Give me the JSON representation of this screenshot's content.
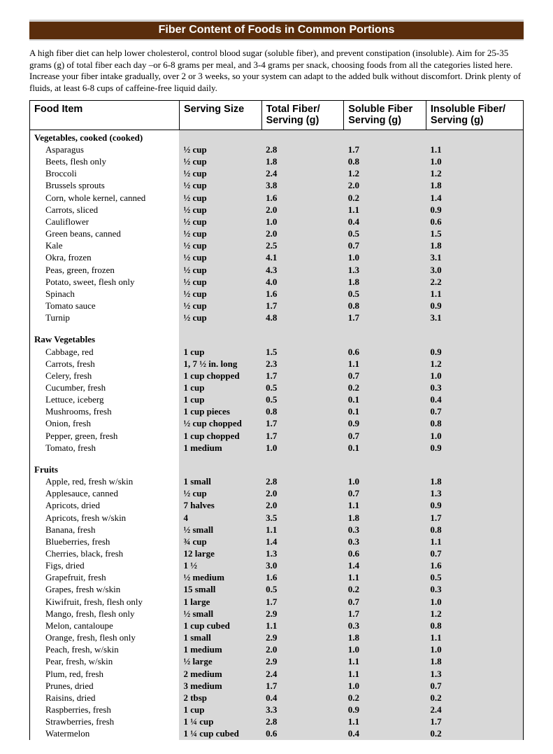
{
  "title": "Fiber Content of Foods in Common Portions",
  "intro": "A high fiber diet can help lower cholesterol, control blood sugar (soluble fiber), and prevent constipation (insoluble). Aim for 25-35 grams (g) of total fiber each day –or 6-8 grams per meal, and 3-4 grams per snack, choosing foods from all the categories listed here. Increase your fiber intake gradually, over 2 or 3 weeks, so your system can adapt to the added bulk without discomfort. Drink plenty of fluids, at least 6-8 cups of caffeine-free liquid daily.",
  "columns": [
    "Food Item",
    "Serving Size",
    "Total Fiber/ Serving (g)",
    "Soluble Fiber Serving (g)",
    "Insoluble Fiber/ Serving (g)"
  ],
  "sections": [
    {
      "heading": "Vegetables, cooked (cooked)",
      "rows": [
        [
          "Asparagus",
          "½ cup",
          "2.8",
          "1.7",
          "1.1"
        ],
        [
          "Beets, flesh only",
          "½ cup",
          "1.8",
          "0.8",
          "1.0"
        ],
        [
          "Broccoli",
          "½ cup",
          "2.4",
          "1.2",
          "1.2"
        ],
        [
          "Brussels sprouts",
          "½ cup",
          "3.8",
          "2.0",
          "1.8"
        ],
        [
          "Corn, whole kernel, canned",
          "½ cup",
          "1.6",
          "0.2",
          "1.4"
        ],
        [
          "Carrots, sliced",
          "½ cup",
          "2.0",
          "1.1",
          "0.9"
        ],
        [
          "Cauliflower",
          "½ cup",
          "1.0",
          "0.4",
          "0.6"
        ],
        [
          "Green beans, canned",
          "½ cup",
          "2.0",
          "0.5",
          "1.5"
        ],
        [
          "Kale",
          "½ cup",
          "2.5",
          "0.7",
          "1.8"
        ],
        [
          "Okra, frozen",
          "½ cup",
          "4.1",
          "1.0",
          "3.1"
        ],
        [
          "Peas, green, frozen",
          "½ cup",
          "4.3",
          "1.3",
          "3.0"
        ],
        [
          "Potato, sweet, flesh only",
          "½ cup",
          "4.0",
          "1.8",
          "2.2"
        ],
        [
          "Spinach",
          "½ cup",
          "1.6",
          "0.5",
          "1.1"
        ],
        [
          "Tomato sauce",
          "½ cup",
          "1.7",
          "0.8",
          "0.9"
        ],
        [
          "Turnip",
          "½ cup",
          "4.8",
          "1.7",
          "3.1"
        ]
      ]
    },
    {
      "heading": "Raw Vegetables",
      "rows": [
        [
          "Cabbage, red",
          "1 cup",
          "1.5",
          "0.6",
          "0.9"
        ],
        [
          "Carrots, fresh",
          "1, 7 ½ in. long",
          "2.3",
          "1.1",
          "1.2"
        ],
        [
          "Celery, fresh",
          "1 cup chopped",
          "1.7",
          "0.7",
          "1.0"
        ],
        [
          "Cucumber, fresh",
          "1 cup",
          "0.5",
          "0.2",
          "0.3"
        ],
        [
          "Lettuce, iceberg",
          "1 cup",
          "0.5",
          "0.1",
          "0.4"
        ],
        [
          "Mushrooms, fresh",
          "1 cup pieces",
          "0.8",
          "0.1",
          "0.7"
        ],
        [
          "Onion, fresh",
          "½ cup chopped",
          "1.7",
          "0.9",
          "0.8"
        ],
        [
          "Pepper, green, fresh",
          "1 cup chopped",
          "1.7",
          "0.7",
          "1.0"
        ],
        [
          "Tomato, fresh",
          "1 medium",
          "1.0",
          "0.1",
          "0.9"
        ]
      ]
    },
    {
      "heading": "Fruits",
      "rows": [
        [
          "Apple, red, fresh w/skin",
          "1 small",
          "2.8",
          "1.0",
          "1.8"
        ],
        [
          "Applesauce, canned",
          "½ cup",
          "2.0",
          "0.7",
          "1.3"
        ],
        [
          "Apricots, dried",
          "7 halves",
          "2.0",
          "1.1",
          "0.9"
        ],
        [
          "Apricots, fresh w/skin",
          "4",
          "3.5",
          "1.8",
          "1.7"
        ],
        [
          "Banana, fresh",
          "½ small",
          "1.1",
          "0.3",
          "0.8"
        ],
        [
          "Blueberries, fresh",
          "¾ cup",
          "1.4",
          "0.3",
          "1.1"
        ],
        [
          "Cherries, black, fresh",
          "12 large",
          "1.3",
          "0.6",
          "0.7"
        ],
        [
          "Figs, dried",
          "1 ½",
          "3.0",
          "1.4",
          "1.6"
        ],
        [
          "Grapefruit, fresh",
          "½ medium",
          "1.6",
          "1.1",
          "0.5"
        ],
        [
          "Grapes, fresh w/skin",
          "15 small",
          "0.5",
          "0.2",
          "0.3"
        ],
        [
          "Kiwifruit, fresh, flesh only",
          "1 large",
          "1.7",
          "0.7",
          "1.0"
        ],
        [
          "Mango, fresh, flesh only",
          "½ small",
          "2.9",
          "1.7",
          "1.2"
        ],
        [
          "Melon, cantaloupe",
          "1 cup cubed",
          "1.1",
          "0.3",
          "0.8"
        ],
        [
          "Orange, fresh, flesh only",
          "1 small",
          "2.9",
          "1.8",
          "1.1"
        ],
        [
          "Peach, fresh, w/skin",
          "1 medium",
          "2.0",
          "1.0",
          "1.0"
        ],
        [
          "Pear, fresh, w/skin",
          "½ large",
          "2.9",
          "1.1",
          "1.8"
        ],
        [
          "Plum, red, fresh",
          "2 medium",
          "2.4",
          "1.1",
          "1.3"
        ],
        [
          "Prunes, dried",
          "3 medium",
          "1.7",
          "1.0",
          "0.7"
        ],
        [
          "Raisins, dried",
          "2 tbsp",
          "0.4",
          "0.2",
          "0.2"
        ],
        [
          "Raspberries, fresh",
          "1 cup",
          "3.3",
          "0.9",
          "2.4"
        ],
        [
          "Strawberries, fresh",
          "1 ¼ cup",
          "2.8",
          "1.1",
          "1.7"
        ],
        [
          "Watermelon",
          "1 ¼ cup cubed",
          "0.6",
          "0.4",
          "0.2"
        ]
      ]
    }
  ],
  "colors": {
    "title_bg": "#5a2d0c",
    "title_text": "#ffffff",
    "shaded_cell": "#d8d8d8",
    "border": "#000000"
  }
}
